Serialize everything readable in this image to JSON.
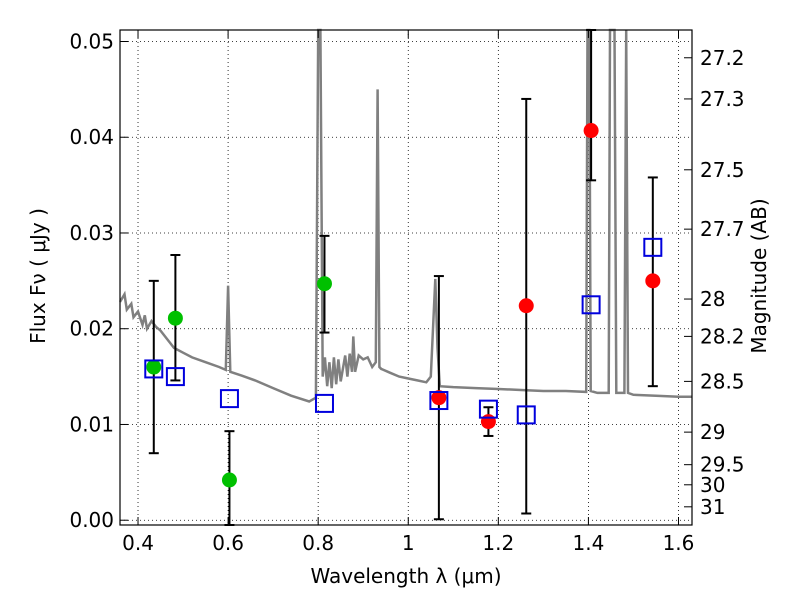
{
  "chart_data": {
    "type": "scatter",
    "title": "",
    "xlabel": "Wavelength  λ (μm)",
    "ylabel": "Flux  Fν  ( μJy )",
    "y2label": "Magnitude (AB)",
    "xlim": [
      0.36,
      1.63
    ],
    "ylim": [
      -0.0005,
      0.0512
    ],
    "grid": true,
    "x_ticks": [
      0.4,
      0.6,
      0.8,
      1.0,
      1.2,
      1.4,
      1.6
    ],
    "x_tick_labels": [
      "0.4",
      "0.6",
      "0.8",
      "1",
      "1.2",
      "1.4",
      "1.6"
    ],
    "y_ticks": [
      0.0,
      0.01,
      0.02,
      0.03,
      0.04,
      0.05
    ],
    "y_tick_labels": [
      "0.00",
      "0.01",
      "0.02",
      "0.03",
      "0.04",
      "0.05"
    ],
    "y2_ticks": [
      {
        "label": "27.2",
        "flux": 0.0483
      },
      {
        "label": "27.3",
        "flux": 0.044
      },
      {
        "label": "27.5",
        "flux": 0.0366
      },
      {
        "label": "27.7",
        "flux": 0.0304
      },
      {
        "label": "28",
        "flux": 0.0231
      },
      {
        "label": "28.2",
        "flux": 0.0192
      },
      {
        "label": "28.5",
        "flux": 0.0145
      },
      {
        "label": "29",
        "flux": 0.0092
      },
      {
        "label": "29.5",
        "flux": 0.0058
      },
      {
        "label": "30",
        "flux": 0.0037
      },
      {
        "label": "31",
        "flux": 0.0014
      }
    ],
    "series": [
      {
        "name": "model spectrum",
        "kind": "line",
        "color": "#808080",
        "points": [
          [
            0.36,
            0.0228
          ],
          [
            0.37,
            0.0236
          ],
          [
            0.375,
            0.022
          ],
          [
            0.385,
            0.0226
          ],
          [
            0.39,
            0.0212
          ],
          [
            0.4,
            0.0218
          ],
          [
            0.41,
            0.0204
          ],
          [
            0.415,
            0.0214
          ],
          [
            0.42,
            0.02
          ],
          [
            0.43,
            0.0208
          ],
          [
            0.44,
            0.0202
          ],
          [
            0.45,
            0.0198
          ],
          [
            0.46,
            0.0192
          ],
          [
            0.47,
            0.0186
          ],
          [
            0.48,
            0.018
          ],
          [
            0.5,
            0.0175
          ],
          [
            0.52,
            0.017
          ],
          [
            0.55,
            0.0165
          ],
          [
            0.58,
            0.016
          ],
          [
            0.595,
            0.0157
          ],
          [
            0.6,
            0.0245
          ],
          [
            0.605,
            0.0155
          ],
          [
            0.63,
            0.0151
          ],
          [
            0.66,
            0.0146
          ],
          [
            0.7,
            0.0138
          ],
          [
            0.74,
            0.013
          ],
          [
            0.78,
            0.0124
          ],
          [
            0.795,
            0.0128
          ],
          [
            0.8,
            0.052
          ],
          [
            0.805,
            0.052
          ],
          [
            0.81,
            0.015
          ],
          [
            0.815,
            0.017
          ],
          [
            0.82,
            0.014
          ],
          [
            0.825,
            0.0165
          ],
          [
            0.83,
            0.0138
          ],
          [
            0.835,
            0.017
          ],
          [
            0.84,
            0.0142
          ],
          [
            0.845,
            0.0168
          ],
          [
            0.85,
            0.0145
          ],
          [
            0.86,
            0.0172
          ],
          [
            0.865,
            0.015
          ],
          [
            0.87,
            0.0174
          ],
          [
            0.875,
            0.0155
          ],
          [
            0.878,
            0.0192
          ],
          [
            0.882,
            0.0155
          ],
          [
            0.89,
            0.0172
          ],
          [
            0.9,
            0.0168
          ],
          [
            0.91,
            0.017
          ],
          [
            0.92,
            0.016
          ],
          [
            0.928,
            0.0165
          ],
          [
            0.932,
            0.045
          ],
          [
            0.936,
            0.016
          ],
          [
            0.94,
            0.0158
          ],
          [
            0.96,
            0.0154
          ],
          [
            0.98,
            0.015
          ],
          [
            1.0,
            0.0148
          ],
          [
            1.02,
            0.0146
          ],
          [
            1.04,
            0.0144
          ],
          [
            1.05,
            0.015
          ],
          [
            1.06,
            0.0252
          ],
          [
            1.065,
            0.018
          ],
          [
            1.07,
            0.014
          ],
          [
            1.1,
            0.0139
          ],
          [
            1.15,
            0.0138
          ],
          [
            1.2,
            0.0137
          ],
          [
            1.25,
            0.0136
          ],
          [
            1.3,
            0.0135
          ],
          [
            1.35,
            0.0135
          ],
          [
            1.395,
            0.0134
          ],
          [
            1.398,
            0.052
          ],
          [
            1.402,
            0.052
          ],
          [
            1.405,
            0.0135
          ],
          [
            1.42,
            0.0133
          ],
          [
            1.445,
            0.0133
          ],
          [
            1.448,
            0.052
          ],
          [
            1.458,
            0.052
          ],
          [
            1.462,
            0.0133
          ],
          [
            1.48,
            0.0133
          ],
          [
            1.484,
            0.052
          ],
          [
            1.488,
            0.0133
          ],
          [
            1.5,
            0.0131
          ],
          [
            1.55,
            0.013
          ],
          [
            1.6,
            0.0129
          ],
          [
            1.63,
            0.0129
          ]
        ]
      },
      {
        "name": "observed (green)",
        "kind": "points",
        "color": "#00c000",
        "points": [
          {
            "x": 0.435,
            "y": 0.016,
            "lo": 0.007,
            "hi": 0.025
          },
          {
            "x": 0.483,
            "y": 0.0211,
            "lo": 0.0146,
            "hi": 0.0277
          },
          {
            "x": 0.603,
            "y": 0.0042,
            "lo": -0.0005,
            "hi": 0.0093
          },
          {
            "x": 0.814,
            "y": 0.0247,
            "lo": 0.0196,
            "hi": 0.0297
          }
        ]
      },
      {
        "name": "observed (red)",
        "kind": "points",
        "color": "#ff0000",
        "points": [
          {
            "x": 1.068,
            "y": 0.0128,
            "lo": 0.0001,
            "hi": 0.0255
          },
          {
            "x": 1.178,
            "y": 0.0103,
            "lo": 0.0088,
            "hi": 0.0118
          },
          {
            "x": 1.262,
            "y": 0.0224,
            "lo": 0.0007,
            "hi": 0.044
          },
          {
            "x": 1.406,
            "y": 0.0407,
            "lo": 0.0355,
            "hi": 0.052
          },
          {
            "x": 1.543,
            "y": 0.025,
            "lo": 0.014,
            "hi": 0.0358
          }
        ]
      },
      {
        "name": "model photometry",
        "kind": "open-squares",
        "color": "#0000dd",
        "points": [
          {
            "x": 0.435,
            "y": 0.0158
          },
          {
            "x": 0.483,
            "y": 0.015
          },
          {
            "x": 0.603,
            "y": 0.0127
          },
          {
            "x": 0.814,
            "y": 0.0122
          },
          {
            "x": 1.068,
            "y": 0.0125
          },
          {
            "x": 1.178,
            "y": 0.0116
          },
          {
            "x": 1.262,
            "y": 0.011
          },
          {
            "x": 1.406,
            "y": 0.0225
          },
          {
            "x": 1.543,
            "y": 0.0285
          }
        ]
      }
    ]
  }
}
